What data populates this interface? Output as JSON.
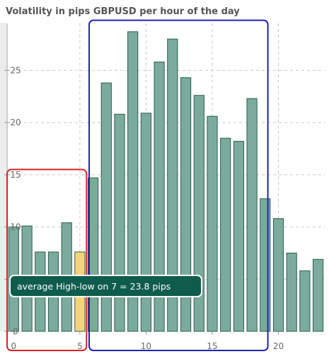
{
  "chart_data": {
    "type": "bar",
    "title": "Volatility in pips GBPUSD per hour of the day",
    "xlabel": "",
    "ylabel": "",
    "x": [
      0,
      1,
      2,
      3,
      4,
      5,
      6,
      7,
      8,
      9,
      10,
      11,
      12,
      13,
      14,
      15,
      16,
      17,
      18,
      19,
      20,
      21,
      22,
      23
    ],
    "values": [
      10.0,
      10.1,
      7.6,
      7.6,
      10.4,
      7.6,
      14.7,
      23.8,
      20.8,
      28.7,
      20.9,
      25.8,
      28.0,
      24.3,
      22.6,
      20.6,
      18.5,
      18.2,
      22.3,
      12.7,
      10.8,
      7.5,
      5.8,
      6.9
    ],
    "xlim": [
      -0.5,
      23.5
    ],
    "ylim": [
      0,
      29.5
    ],
    "xticks": [
      0,
      5,
      10,
      15,
      20
    ],
    "yticks": [
      0,
      5,
      10,
      15,
      20,
      25
    ],
    "grid": true,
    "highlighted_index": 5,
    "tooltip": {
      "x": 7,
      "text": "average High-low on 7 = 23.8 pips"
    },
    "colors": {
      "bar": "#7aab9c",
      "bar_stroke": "#2f5d50",
      "highlight_bar": "#f4d47a",
      "tooltip_bg": "#0e5c4c",
      "grid": "#c8c8c8",
      "left_band": "#ececec"
    },
    "annotations": [
      {
        "shape": "rounded-rect",
        "color": "#dd2222",
        "x_range": [
          -0.5,
          5.5
        ],
        "y_range": [
          0,
          15.5
        ]
      },
      {
        "shape": "rounded-rect",
        "color": "#2222bb",
        "x_range": [
          5.7,
          19.2
        ],
        "y_range": [
          0,
          29.8
        ]
      }
    ]
  }
}
